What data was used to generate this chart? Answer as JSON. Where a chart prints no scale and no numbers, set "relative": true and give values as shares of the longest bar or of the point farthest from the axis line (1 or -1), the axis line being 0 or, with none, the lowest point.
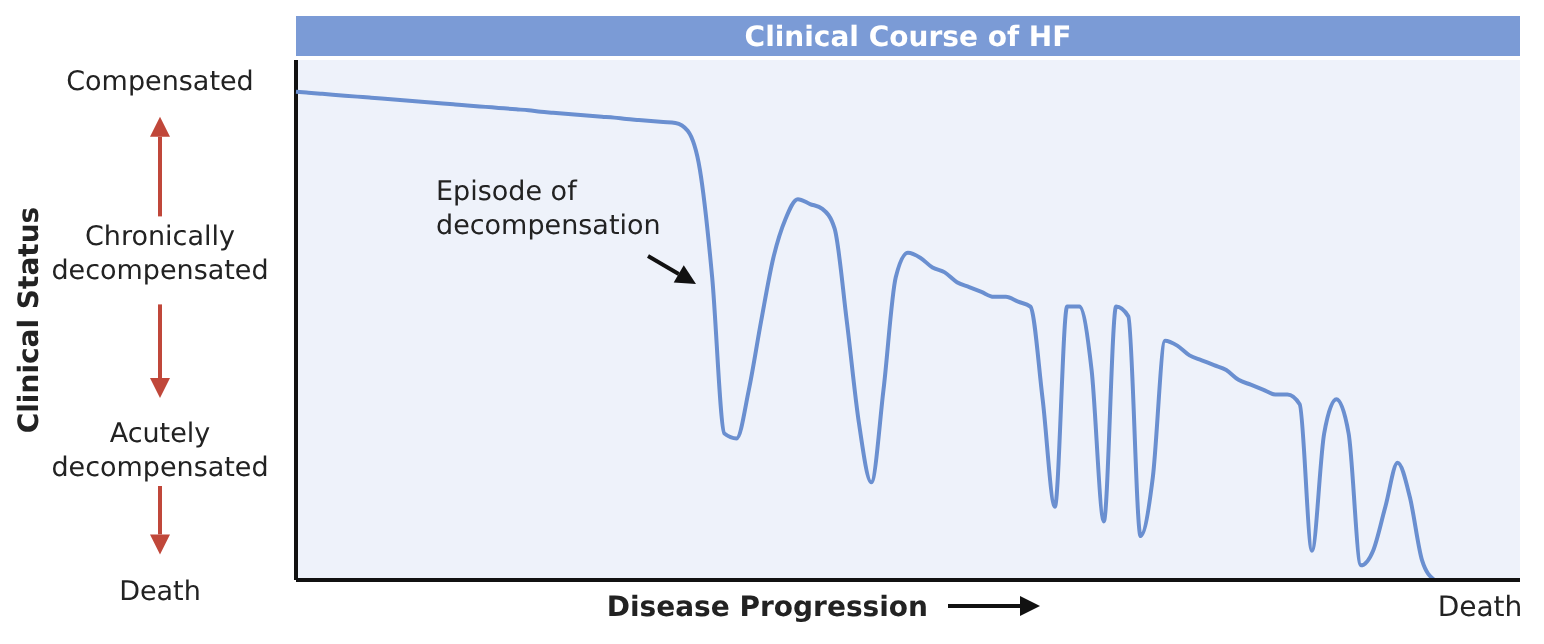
{
  "chart_data": {
    "type": "line",
    "title": "Clinical Course of HF",
    "xlabel": "Disease Progression",
    "relative": true,
    "categories": [
      null,
      null,
      null,
      null,
      null,
      null,
      null,
      null,
      null,
      null,
      null,
      null,
      null,
      null,
      null,
      null,
      null,
      null,
      null,
      null,
      null,
      null,
      null,
      null,
      null,
      null,
      null,
      null,
      null,
      null,
      null,
      null,
      null,
      null,
      null,
      null,
      null,
      null,
      null,
      null,
      null,
      null,
      null,
      null,
      null,
      null,
      null,
      null,
      null,
      null,
      null,
      null,
      null,
      null,
      null,
      null,
      null,
      null,
      null,
      null,
      null,
      null,
      null,
      null,
      null,
      null,
      null,
      null,
      null,
      null,
      null,
      null,
      null,
      null,
      null,
      null,
      null,
      null,
      null,
      null,
      null,
      null,
      null,
      null,
      null,
      null,
      null,
      null,
      null,
      null,
      null,
      null,
      null,
      null,
      null,
      null,
      null,
      null,
      null,
      null,
      null
    ],
    "series": [
      {
        "color": "#6a8fd0",
        "values": [
          1,
          0.998,
          0.996,
          0.994,
          0.992,
          0.99,
          0.988,
          0.986,
          0.984,
          0.982,
          0.98,
          0.978,
          0.976,
          0.974,
          0.972,
          0.97,
          0.968,
          0.966,
          0.964,
          0.962,
          0.959,
          0.957,
          0.955,
          0.953,
          0.951,
          0.949,
          0.947,
          0.944,
          0.942,
          0.94,
          0.938,
          0.936,
          0.92,
          0.84,
          0.62,
          0.3,
          0.29,
          0.39,
          0.53,
          0.66,
          0.74,
          0.78,
          0.77,
          0.76,
          0.72,
          0.53,
          0.32,
          0.2,
          0.39,
          0.62,
          0.67,
          0.66,
          0.64,
          0.63,
          0.61,
          0.6,
          0.59,
          0.58,
          0.58,
          0.57,
          0.56,
          0.37,
          0.15,
          0.56,
          0.56,
          0.43,
          0.12,
          0.56,
          0.54,
          0.09,
          0.21,
          0.49,
          0.48,
          0.46,
          0.45,
          0.44,
          0.43,
          0.41,
          0.4,
          0.39,
          0.38,
          0.38,
          0.36,
          0.06,
          0.3,
          0.37,
          0.3,
          0.03,
          0.06,
          0.15,
          0.24,
          0.17,
          0.04,
          0,
          null,
          null,
          null,
          null,
          null,
          null,
          null
        ]
      }
    ],
    "annotations": [
      "Compensated",
      "Chronically decompensated",
      "Acutely decompensated",
      "Death",
      "Episode of decompensation",
      "Death",
      "Clinical Status"
    ],
    "grid": false,
    "legend": false,
    "marker": "none",
    "line_style": "solid"
  }
}
